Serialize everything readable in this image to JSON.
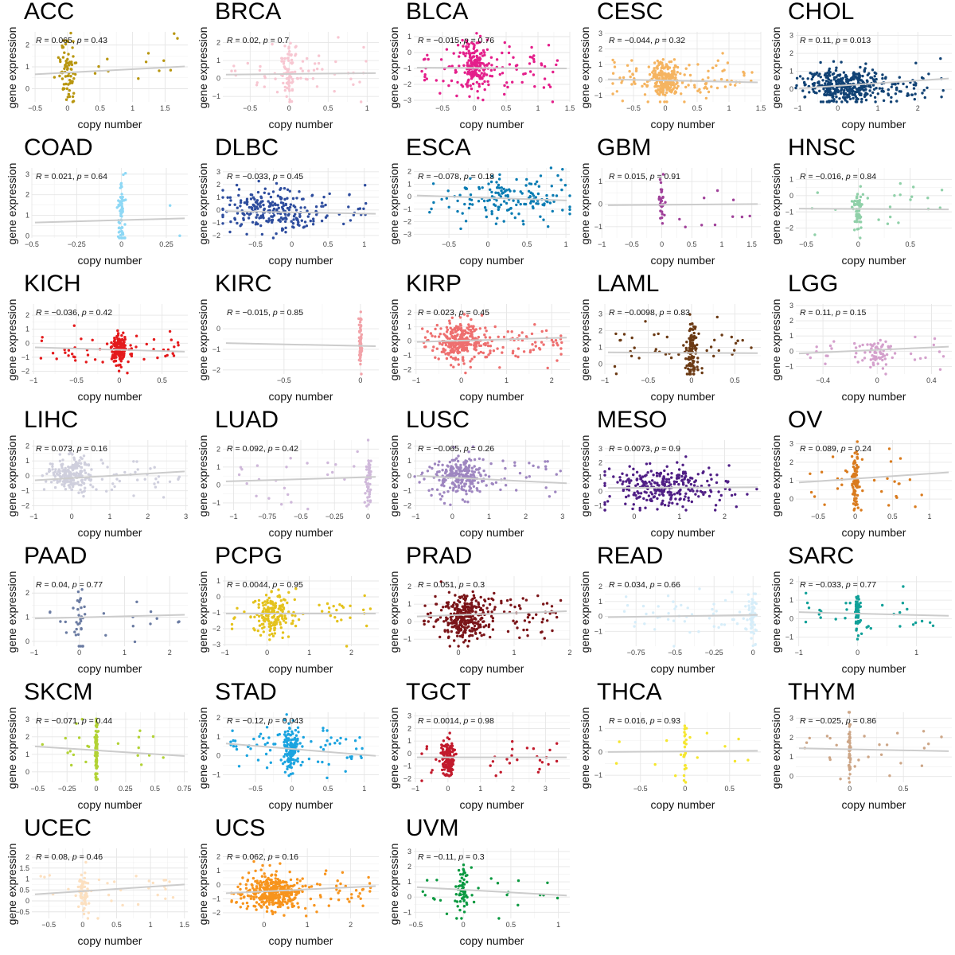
{
  "labels": {
    "x": "copy number",
    "y": "gene expression",
    "r": "R",
    "p": "p"
  },
  "chart_data": [
    {
      "type": "scatter",
      "title": "ACC",
      "color": "#B8960F",
      "xlim": [
        -0.55,
        1.85
      ],
      "ylim": [
        -0.6,
        2.6
      ],
      "xticks": [
        -0.5,
        0,
        0.5,
        1,
        1.5
      ],
      "yticks": [
        0,
        1,
        2
      ],
      "r": "0.065",
      "p": "0.43",
      "fit": [
        0.66,
        1.02
      ],
      "n": 90,
      "cx": 0,
      "sx": 0.08,
      "wide": 0.2,
      "ym": 0.9,
      "ys": 0.7
    },
    {
      "type": "scatter",
      "title": "BRCA",
      "color": "#F7C6D1",
      "xlim": [
        -0.85,
        1.15
      ],
      "ylim": [
        -1.3,
        2.6
      ],
      "xticks": [
        -0.5,
        0,
        0.5,
        1
      ],
      "yticks": [
        -1,
        0,
        1,
        2
      ],
      "r": "0.02",
      "p": "0.7",
      "fit": [
        0.22,
        0.3
      ],
      "n": 120,
      "cx": 0,
      "sx": 0.05,
      "wide": 0.4,
      "ym": 0.3,
      "ys": 0.8
    },
    {
      "type": "scatter",
      "title": "BLCA",
      "color": "#E41F8B",
      "xlim": [
        -0.95,
        1.5
      ],
      "ylim": [
        -3.1,
        1.3
      ],
      "xticks": [
        -0.5,
        0,
        0.5,
        1,
        1.5
      ],
      "yticks": [
        -3,
        -2,
        -1,
        0,
        1
      ],
      "r": "−0.015",
      "p": "0.76",
      "fit": [
        -0.95,
        -1.0
      ],
      "n": 260,
      "cx": 0,
      "sx": 0.12,
      "wide": 0.35,
      "ym": -1.0,
      "ys": 0.8
    },
    {
      "type": "scatter",
      "title": "CESC",
      "color": "#F5B460",
      "xlim": [
        -0.95,
        1.5
      ],
      "ylim": [
        -1.4,
        3.1
      ],
      "xticks": [
        -0.5,
        0,
        0.5,
        1,
        1.5
      ],
      "yticks": [
        -1,
        0,
        1,
        2,
        3
      ],
      "r": "−0.044",
      "p": "0.32",
      "fit": [
        0.05,
        -0.15
      ],
      "n": 300,
      "cx": 0,
      "sx": 0.1,
      "wide": 0.35,
      "ym": 0.0,
      "ys": 0.6
    },
    {
      "type": "scatter",
      "title": "CHOL",
      "color": "#114274",
      "xlim": [
        -1.05,
        2.85
      ],
      "ylim": [
        -0.7,
        3.2
      ],
      "xticks": [
        -1,
        0,
        1,
        2
      ],
      "yticks": [
        0,
        1,
        2,
        3
      ],
      "r": "0.11",
      "p": "0.013",
      "fit": [
        0.05,
        0.6
      ],
      "n": 420,
      "cx": 0.2,
      "sx": 0.45,
      "wide": 0.3,
      "ym": 0.2,
      "ys": 0.5
    },
    {
      "type": "scatter",
      "title": "COAD",
      "color": "#8ED8F5",
      "xlim": [
        -0.5,
        0.37
      ],
      "ylim": [
        -0.1,
        3.3
      ],
      "xticks": [
        -0.5,
        -0.25,
        0,
        0.25
      ],
      "yticks": [
        0,
        1,
        2,
        3
      ],
      "r": "0.021",
      "p": "0.64",
      "fit": [
        0.65,
        0.85
      ],
      "n": 70,
      "cx": 0,
      "sx": 0.01,
      "wide": 0.05,
      "ym": 1.0,
      "ys": 0.8
    },
    {
      "type": "scatter",
      "title": "DLBC",
      "color": "#2E4D9E",
      "xlim": [
        -0.95,
        1.2
      ],
      "ylim": [
        -2.2,
        3.3
      ],
      "xticks": [
        -0.5,
        0,
        0.5,
        1
      ],
      "yticks": [
        -2,
        -1,
        0,
        1,
        2,
        3
      ],
      "r": "−0.033",
      "p": "0.45",
      "fit": [
        -0.1,
        -0.3
      ],
      "n": 260,
      "cx": -0.3,
      "sx": 0.35,
      "wide": 0.2,
      "ym": -0.1,
      "ys": 0.8
    },
    {
      "type": "scatter",
      "title": "ESCA",
      "color": "#0A7CB3",
      "xlim": [
        -0.95,
        1.05
      ],
      "ylim": [
        -3.3,
        2.3
      ],
      "xticks": [
        -0.5,
        0,
        0.5,
        1
      ],
      "yticks": [
        -3,
        -2,
        -1,
        0,
        1,
        2
      ],
      "r": "−0.078",
      "p": "0.18",
      "fit": [
        0.1,
        -0.3
      ],
      "n": 160,
      "cx": 0.3,
      "sx": 0.35,
      "wide": 0.2,
      "ym": -0.1,
      "ys": 0.9
    },
    {
      "type": "scatter",
      "title": "GBM",
      "color": "#A0419A",
      "xlim": [
        -0.95,
        1.65
      ],
      "ylim": [
        -1.5,
        1.6
      ],
      "xticks": [
        -1,
        -0.5,
        0,
        0.5,
        1,
        1.5
      ],
      "yticks": [
        -1,
        0,
        1
      ],
      "r": "0.015",
      "p": "0.91",
      "fit": [
        -0.05,
        0.0
      ],
      "n": 40,
      "cx": 0,
      "sx": 0.03,
      "wide": 0.3,
      "ym": -0.1,
      "ys": 0.6
    },
    {
      "type": "scatter",
      "title": "HNSC",
      "color": "#8FD0A8",
      "xlim": [
        -0.6,
        0.9
      ],
      "ylim": [
        -2.6,
        1.7
      ],
      "xticks": [
        -0.5,
        0,
        0.5
      ],
      "yticks": [
        -2,
        -1,
        0,
        1
      ],
      "r": "−0.016",
      "p": "0.84",
      "fit": [
        -0.8,
        -0.85
      ],
      "n": 80,
      "cx": 0,
      "sx": 0.02,
      "wide": 0.3,
      "ym": -0.8,
      "ys": 0.7
    },
    {
      "type": "scatter",
      "title": "KICH",
      "color": "#E41A1C",
      "xlim": [
        -1.02,
        0.8
      ],
      "ylim": [
        -2.2,
        2.8
      ],
      "xticks": [
        -1,
        -0.5,
        0,
        0.5
      ],
      "yticks": [
        -2,
        -1,
        0,
        1,
        2
      ],
      "r": "−0.036",
      "p": "0.42",
      "fit": [
        -0.3,
        -0.6
      ],
      "n": 180,
      "cx": 0,
      "sx": 0.04,
      "wide": 0.3,
      "ym": -0.4,
      "ys": 0.6
    },
    {
      "type": "scatter",
      "title": "KIRC",
      "color": "#F2A3A9",
      "xlim": [
        -0.9,
        0.12
      ],
      "ylim": [
        -2.2,
        1.2
      ],
      "xticks": [
        -0.5,
        0
      ],
      "yticks": [
        -2,
        -1,
        0
      ],
      "r": "−0.015",
      "p": "0.85",
      "fit": [
        -0.7,
        -0.85
      ],
      "n": 60,
      "cx": 0,
      "sx": 0.004,
      "wide": 0.0,
      "ym": -0.7,
      "ys": 0.7
    },
    {
      "type": "scatter",
      "title": "KIRP",
      "color": "#EE6F6F",
      "xlim": [
        -1.05,
        2.4
      ],
      "ylim": [
        -2.3,
        2.6
      ],
      "xticks": [
        -1,
        0,
        1,
        2
      ],
      "yticks": [
        -2,
        -1,
        0,
        1,
        2
      ],
      "r": "0.023",
      "p": "0.45",
      "fit": [
        -0.05,
        0.25
      ],
      "n": 360,
      "cx": 0,
      "sx": 0.2,
      "wide": 0.3,
      "ym": 0.0,
      "ys": 0.7
    },
    {
      "type": "scatter",
      "title": "LAML",
      "color": "#6B3A14",
      "xlim": [
        -1.0,
        0.8
      ],
      "ylim": [
        -0.6,
        3.6
      ],
      "xticks": [
        -1,
        -0.5,
        0,
        0.5
      ],
      "yticks": [
        0,
        1,
        2,
        3
      ],
      "r": "−0.0098",
      "p": "0.83",
      "fit": [
        0.7,
        0.65
      ],
      "n": 150,
      "cx": 0,
      "sx": 0.03,
      "wide": 0.3,
      "ym": 0.8,
      "ys": 0.8
    },
    {
      "type": "scatter",
      "title": "LGG",
      "color": "#D4A0CC",
      "xlim": [
        -0.6,
        0.55
      ],
      "ylim": [
        -1.5,
        3.1
      ],
      "xticks": [
        -0.4,
        0,
        0.4
      ],
      "yticks": [
        -1,
        0,
        1,
        2,
        3
      ],
      "r": "0.11",
      "p": "0.15",
      "fit": [
        -0.15,
        0.3
      ],
      "n": 90,
      "cx": 0,
      "sx": 0.05,
      "wide": 0.3,
      "ym": -0.1,
      "ys": 0.5
    },
    {
      "type": "scatter",
      "title": "LIHC",
      "color": "#CFCFDD",
      "xlim": [
        -1.05,
        3.05
      ],
      "ylim": [
        -2.3,
        2.4
      ],
      "xticks": [
        -1,
        0,
        1,
        2,
        3
      ],
      "yticks": [
        -2,
        -1,
        0,
        1,
        2
      ],
      "r": "0.073",
      "p": "0.16",
      "fit": [
        -0.3,
        0.3
      ],
      "n": 230,
      "cx": 0,
      "sx": 0.3,
      "wide": 0.2,
      "ym": 0.0,
      "ys": 0.6
    },
    {
      "type": "scatter",
      "title": "LUAD",
      "color": "#CFB8DA",
      "xlim": [
        -1.08,
        0.08
      ],
      "ylim": [
        -1.4,
        2.5
      ],
      "xticks": [
        -1,
        -0.75,
        -0.5,
        -0.25,
        0
      ],
      "yticks": [
        -1,
        0,
        1,
        2
      ],
      "r": "0.092",
      "p": "0.42",
      "fit": [
        0.2,
        0.45
      ],
      "n": 70,
      "cx": 0,
      "sx": 0.01,
      "wide": 0.5,
      "ym": 0.4,
      "ys": 0.8
    },
    {
      "type": "scatter",
      "title": "LUSC",
      "color": "#9E86C0",
      "xlim": [
        -1.05,
        3.2
      ],
      "ylim": [
        -2.3,
        2.4
      ],
      "xticks": [
        -1,
        0,
        1,
        2,
        3
      ],
      "yticks": [
        -2,
        -1,
        0,
        1,
        2
      ],
      "r": "−0.065",
      "p": "0.26",
      "fit": [
        0.0,
        -0.5
      ],
      "n": 260,
      "cx": 0.2,
      "sx": 0.35,
      "wide": 0.15,
      "ym": 0.0,
      "ys": 0.7
    },
    {
      "type": "scatter",
      "title": "MESO",
      "color": "#4F1E85",
      "xlim": [
        -0.65,
        2.8
      ],
      "ylim": [
        -1.3,
        3.6
      ],
      "xticks": [
        0,
        1,
        2
      ],
      "yticks": [
        -1,
        0,
        1,
        2,
        3
      ],
      "r": "0.0073",
      "p": "0.9",
      "fit": [
        0.25,
        0.3
      ],
      "n": 280,
      "cx": 0.6,
      "sx": 0.6,
      "wide": 0.15,
      "ym": 0.3,
      "ys": 0.7
    },
    {
      "type": "scatter",
      "title": "OV",
      "color": "#D97B1E",
      "xlim": [
        -0.8,
        1.3
      ],
      "ylim": [
        -0.6,
        3.2
      ],
      "xticks": [
        -0.5,
        0,
        0.5,
        1
      ],
      "yticks": [
        0,
        1,
        2,
        3
      ],
      "r": "0.089",
      "p": "0.24",
      "fit": [
        0.9,
        1.45
      ],
      "n": 120,
      "cx": 0,
      "sx": 0.02,
      "wide": 0.3,
      "ym": 1.0,
      "ys": 0.8
    },
    {
      "type": "scatter",
      "title": "PAAD",
      "color": "#6A7BA2",
      "xlim": [
        -1.05,
        2.4
      ],
      "ylim": [
        -0.2,
        2.7
      ],
      "xticks": [
        -1,
        0,
        1,
        2
      ],
      "yticks": [
        0,
        1,
        2
      ],
      "r": "0.04",
      "p": "0.77",
      "fit": [
        0.95,
        1.1
      ],
      "n": 45,
      "cx": 0,
      "sx": 0.05,
      "wide": 0.4,
      "ym": 1.0,
      "ys": 0.6
    },
    {
      "type": "scatter",
      "title": "PCPG",
      "color": "#E4C21C",
      "xlim": [
        -1.05,
        2.65
      ],
      "ylim": [
        -3.1,
        1.3
      ],
      "xticks": [
        -1,
        0,
        1,
        2
      ],
      "yticks": [
        -3,
        -2,
        -1,
        0,
        1
      ],
      "r": "0.0044",
      "p": "0.95",
      "fit": [
        -1.05,
        -1.05
      ],
      "n": 200,
      "cx": 0.1,
      "sx": 0.2,
      "wide": 0.3,
      "ym": -1.0,
      "ys": 0.7
    },
    {
      "type": "scatter",
      "title": "PRAD",
      "color": "#7A1418",
      "xlim": [
        -0.8,
        2.0
      ],
      "ylim": [
        -1.4,
        2.6
      ],
      "xticks": [
        0,
        1,
        2
      ],
      "yticks": [
        -1,
        0,
        1,
        2
      ],
      "r": "0.051",
      "p": "0.3",
      "fit": [
        0.3,
        0.6
      ],
      "n": 380,
      "cx": 0.1,
      "sx": 0.2,
      "wide": 0.3,
      "ym": 0.3,
      "ys": 0.6
    },
    {
      "type": "scatter",
      "title": "READ",
      "color": "#D6EDF9",
      "xlim": [
        -0.95,
        0.05
      ],
      "ylim": [
        -2.0,
        2.7
      ],
      "xticks": [
        -0.75,
        -0.5,
        -0.25,
        0
      ],
      "yticks": [
        -1,
        0,
        1,
        2
      ],
      "r": "0.034",
      "p": "0.66",
      "fit": [
        -0.05,
        0.1
      ],
      "n": 110,
      "cx": 0,
      "sx": 0.01,
      "wide": 0.5,
      "ym": 0.0,
      "ys": 0.8
    },
    {
      "type": "scatter",
      "title": "SARC",
      "color": "#10A098",
      "xlim": [
        -1.05,
        1.6
      ],
      "ylim": [
        -1.5,
        2.3
      ],
      "xticks": [
        -1,
        0,
        1
      ],
      "yticks": [
        -1,
        0,
        1,
        2
      ],
      "r": "−0.033",
      "p": "0.77",
      "fit": [
        0.35,
        0.15
      ],
      "n": 90,
      "cx": 0,
      "sx": 0.02,
      "wide": 0.3,
      "ym": 0.3,
      "ys": 0.6
    },
    {
      "type": "scatter",
      "title": "SKCM",
      "color": "#B2D235",
      "xlim": [
        -0.55,
        0.78
      ],
      "ylim": [
        -0.6,
        3.4
      ],
      "xticks": [
        -0.5,
        -0.25,
        0,
        0.25,
        0.5,
        0.75
      ],
      "yticks": [
        0,
        1,
        2,
        3
      ],
      "r": "−0.071",
      "p": "0.44",
      "fit": [
        1.45,
        0.9
      ],
      "n": 120,
      "cx": 0,
      "sx": 0.005,
      "wide": 0.2,
      "ym": 1.2,
      "ys": 0.8
    },
    {
      "type": "scatter",
      "title": "STAD",
      "color": "#1BA4E0",
      "xlim": [
        -0.95,
        1.2
      ],
      "ylim": [
        -1.4,
        2.3
      ],
      "xticks": [
        -0.5,
        0,
        0.5,
        1
      ],
      "yticks": [
        -1,
        0,
        1,
        2
      ],
      "r": "−0.12",
      "p": "0.043",
      "fit": [
        0.65,
        0.0
      ],
      "n": 200,
      "cx": 0,
      "sx": 0.05,
      "wide": 0.35,
      "ym": 0.4,
      "ys": 0.6
    },
    {
      "type": "scatter",
      "title": "TGCT",
      "color": "#C21A2C",
      "xlim": [
        -1.05,
        3.75
      ],
      "ylim": [
        -2.3,
        3.3
      ],
      "xticks": [
        -1,
        0,
        1,
        2,
        3
      ],
      "yticks": [
        -2,
        -1,
        0,
        1,
        2,
        3
      ],
      "r": "0.0014",
      "p": "0.98",
      "fit": [
        -0.3,
        -0.3
      ],
      "n": 180,
      "cx": 0,
      "sx": 0.1,
      "wide": 0.2,
      "ym": -0.3,
      "ys": 0.8
    },
    {
      "type": "scatter",
      "title": "THCA",
      "color": "#F5E62D",
      "xlim": [
        -0.9,
        0.85
      ],
      "ylim": [
        -1.3,
        1.7
      ],
      "xticks": [
        -0.5,
        0,
        0.5
      ],
      "yticks": [
        -1,
        0,
        1
      ],
      "r": "0.016",
      "p": "0.93",
      "fit": [
        0.0,
        0.05
      ],
      "n": 40,
      "cx": 0,
      "sx": 0.01,
      "wide": 0.4,
      "ym": 0.0,
      "ys": 0.6
    },
    {
      "type": "scatter",
      "title": "THYM",
      "color": "#CDA687",
      "xlim": [
        -0.5,
        0.95
      ],
      "ylim": [
        -0.3,
        3.3
      ],
      "xticks": [
        0,
        0.5
      ],
      "yticks": [
        0,
        1,
        2,
        3
      ],
      "r": "−0.025",
      "p": "0.86",
      "fit": [
        1.45,
        1.3
      ],
      "n": 70,
      "cx": 0,
      "sx": 0.005,
      "wide": 0.4,
      "ym": 1.5,
      "ys": 0.8
    },
    {
      "type": "scatter",
      "title": "UCEC",
      "color": "#FCE0C0",
      "xlim": [
        -0.75,
        1.55
      ],
      "ylim": [
        -0.8,
        2.4
      ],
      "xticks": [
        -0.5,
        0,
        0.5,
        1,
        1.5
      ],
      "yticks": [
        -0.5,
        0,
        0.5,
        1,
        1.5,
        2
      ],
      "r": "0.08",
      "p": "0.46",
      "fit": [
        0.3,
        0.75
      ],
      "n": 90,
      "cx": 0,
      "sx": 0.04,
      "wide": 0.3,
      "ym": 0.5,
      "ys": 0.5
    },
    {
      "type": "scatter",
      "title": "UCS",
      "color": "#F7941D",
      "xlim": [
        -0.95,
        2.65
      ],
      "ylim": [
        -2.4,
        2.6
      ],
      "xticks": [
        0,
        1,
        2
      ],
      "yticks": [
        -2,
        -1,
        0,
        1,
        2
      ],
      "r": "0.062",
      "p": "0.16",
      "fit": [
        -0.6,
        -0.1
      ],
      "n": 420,
      "cx": 0.2,
      "sx": 0.3,
      "wide": 0.2,
      "ym": -0.5,
      "ys": 0.6
    },
    {
      "type": "scatter",
      "title": "UVM",
      "color": "#0B9940",
      "xlim": [
        -0.52,
        1.12
      ],
      "ylim": [
        -1.4,
        3.2
      ],
      "xticks": [
        -0.5,
        0,
        0.5,
        1
      ],
      "yticks": [
        -1,
        0,
        1,
        2,
        3
      ],
      "r": "−0.11",
      "p": "0.3",
      "fit": [
        0.65,
        0.1
      ],
      "n": 80,
      "cx": 0,
      "sx": 0.03,
      "wide": 0.3,
      "ym": 0.5,
      "ys": 0.8
    }
  ]
}
